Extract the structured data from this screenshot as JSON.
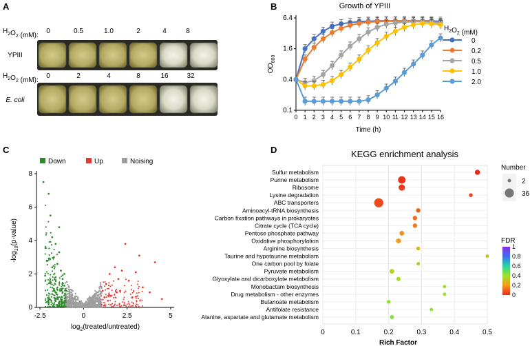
{
  "panels": {
    "a": "A",
    "b": "B",
    "c": "C",
    "d": "D"
  },
  "panel_a": {
    "row1": {
      "header_label": "H2O2 (mM):",
      "organism": "YPIII",
      "concentrations": [
        "0",
        "0.5",
        "1.0",
        "2",
        "4",
        "8"
      ],
      "wells": [
        "turbid",
        "turbid",
        "turbid",
        "turbid",
        "clear",
        "clear"
      ]
    },
    "row2": {
      "header_label": "H2O2 (mM):",
      "organism": "E. coli",
      "concentrations": [
        "0",
        "2",
        "4",
        "8",
        "16",
        "32"
      ],
      "wells": [
        "turbid",
        "turbid",
        "turbid",
        "turbid",
        "clear",
        "clear"
      ]
    }
  },
  "chart_data": [
    {
      "type": "line",
      "panel": "B",
      "title": "Growth of YPIII",
      "xlabel": "Time (h)",
      "ylabel": "OD600",
      "yscale": "log",
      "x": [
        0,
        1,
        2,
        3,
        4,
        5,
        6,
        7,
        8,
        9,
        10,
        11,
        12,
        13,
        14,
        15,
        16
      ],
      "xlim": [
        0,
        16
      ],
      "ylim": [
        0.1,
        6.4
      ],
      "y_ticks": [
        0.1,
        0.4,
        1.6,
        6.4
      ],
      "y_tick_labels": [
        "0.1",
        "0.4",
        "1.6",
        "6.4"
      ],
      "legend_title": "H2O2 (mM)",
      "legend_position": "right",
      "series": [
        {
          "name": "0",
          "color": "#4472c4",
          "values": [
            0.4,
            1.6,
            2.5,
            3.5,
            4.4,
            4.9,
            5.2,
            5.4,
            5.5,
            5.6,
            5.6,
            5.6,
            5.6,
            5.6,
            5.6,
            5.6,
            5.5
          ]
        },
        {
          "name": "0.2",
          "color": "#ed7d31",
          "values": [
            0.4,
            1.0,
            1.7,
            2.5,
            3.3,
            4.0,
            4.6,
            5.0,
            5.3,
            5.4,
            5.5,
            5.5,
            5.5,
            5.5,
            5.5,
            5.4,
            5.2
          ]
        },
        {
          "name": "0.5",
          "color": "#a5a5a5",
          "values": [
            0.4,
            0.35,
            0.38,
            0.5,
            0.75,
            1.2,
            1.8,
            2.5,
            3.4,
            4.2,
            4.8,
            5.1,
            5.3,
            5.4,
            5.4,
            5.3,
            5.0
          ]
        },
        {
          "name": "1.0",
          "color": "#ffc000",
          "values": [
            0.4,
            0.3,
            0.3,
            0.32,
            0.38,
            0.5,
            0.7,
            1.0,
            1.5,
            2.1,
            2.8,
            3.5,
            4.2,
            4.7,
            5.0,
            4.9,
            4.7
          ]
        },
        {
          "name": "2.0",
          "color": "#5b9bd5",
          "values": [
            0.4,
            0.15,
            0.15,
            0.15,
            0.15,
            0.15,
            0.15,
            0.15,
            0.16,
            0.2,
            0.27,
            0.37,
            0.55,
            0.8,
            1.2,
            1.9,
            2.6
          ]
        }
      ]
    },
    {
      "type": "scatter",
      "panel": "C",
      "xlabel": "log2(treated/untreated)",
      "ylabel": "-log10(p-value)",
      "xlim": [
        -2.5,
        5
      ],
      "ylim": [
        0,
        8
      ],
      "x_ticks": [
        -2.5,
        0,
        2.5,
        5
      ],
      "x_tick_labels": [
        "-2.5",
        "0",
        "2.5",
        "5"
      ],
      "y_ticks": [
        0,
        2,
        4,
        6,
        8
      ],
      "y_tick_labels": [
        "0",
        "2",
        "4",
        "6",
        "8"
      ],
      "legend": [
        {
          "name": "Down",
          "color": "#2e8b2e"
        },
        {
          "name": "Up",
          "color": "#e53935"
        },
        {
          "name": "Noising",
          "color": "#9e9e9e"
        }
      ],
      "groups": [
        {
          "name": "Down",
          "color": "#2e8b2e",
          "points": [
            [
              -2.3,
              7.5
            ],
            [
              -2.0,
              6.8
            ],
            [
              -1.9,
              5.5
            ],
            [
              -1.8,
              4.2
            ],
            [
              -1.6,
              3.8
            ],
            [
              -1.7,
              3.0
            ],
            [
              -1.5,
              2.6
            ],
            [
              -1.3,
              2.2
            ],
            [
              -1.2,
              1.7
            ],
            [
              -1.1,
              1.3
            ],
            [
              -1.8,
              2.4
            ],
            [
              -1.4,
              3.3
            ],
            [
              -1.0,
              1.0
            ],
            [
              -1.6,
              1.8
            ],
            [
              -2.1,
              2.8
            ],
            [
              -1.9,
              1.5
            ],
            [
              -1.3,
              1.0
            ],
            [
              -1.7,
              1.1
            ],
            [
              -1.2,
              0.9
            ],
            [
              -1.5,
              0.6
            ],
            [
              -2.2,
              1.9
            ],
            [
              -1.4,
              4.8
            ],
            [
              -1.1,
              2.0
            ],
            [
              -1.8,
              0.8
            ],
            [
              -1.3,
              0.5
            ]
          ]
        },
        {
          "name": "Up",
          "color": "#e53935",
          "points": [
            [
              1.1,
              1.0
            ],
            [
              1.3,
              1.4
            ],
            [
              1.5,
              2.0
            ],
            [
              1.8,
              2.4
            ],
            [
              2.0,
              1.7
            ],
            [
              2.2,
              2.2
            ],
            [
              2.6,
              1.6
            ],
            [
              3.0,
              2.1
            ],
            [
              3.4,
              1.2
            ],
            [
              3.8,
              0.9
            ],
            [
              1.6,
              0.7
            ],
            [
              1.2,
              0.6
            ],
            [
              2.8,
              0.6
            ],
            [
              4.1,
              2.7
            ],
            [
              4.5,
              0.5
            ],
            [
              2.4,
              3.8
            ],
            [
              1.9,
              0.9
            ],
            [
              1.4,
              0.4
            ],
            [
              3.2,
              3.1
            ],
            [
              2.1,
              1.0
            ]
          ]
        },
        {
          "name": "Noising",
          "color": "#9e9e9e",
          "points": [
            [
              -0.8,
              0.4
            ],
            [
              -0.6,
              0.25
            ],
            [
              -0.4,
              0.15
            ],
            [
              -0.2,
              0.05
            ],
            [
              0,
              0.02
            ],
            [
              0.2,
              0.06
            ],
            [
              0.4,
              0.14
            ],
            [
              0.6,
              0.22
            ],
            [
              0.8,
              0.35
            ],
            [
              -0.9,
              0.6
            ],
            [
              0.9,
              0.55
            ],
            [
              -0.7,
              0.9
            ],
            [
              0.7,
              0.8
            ],
            [
              -0.5,
              0.5
            ],
            [
              0.5,
              0.45
            ],
            [
              1.0,
              0.3
            ],
            [
              -1.0,
              0.2
            ],
            [
              0.3,
              0.3
            ],
            [
              -0.3,
              0.25
            ],
            [
              0.1,
              0.1
            ],
            [
              -0.1,
              0.12
            ]
          ]
        }
      ]
    },
    {
      "type": "scatter",
      "panel": "D",
      "title": "KEGG enrichment analysis",
      "xlabel": "Rich Factor",
      "xlim": [
        0,
        0.5
      ],
      "x_ticks": [
        0,
        0.1,
        0.2,
        0.3,
        0.4,
        0.5
      ],
      "x_tick_labels": [
        "0",
        "0.1",
        "0.2",
        "0.3",
        "0.4",
        "0.5"
      ],
      "size_legend_title": "Number",
      "size_legend": [
        {
          "label": "2",
          "value": 2
        },
        {
          "label": "36",
          "value": 36
        }
      ],
      "color_legend_title": "FDR",
      "color_legend_ticks": [
        "1",
        "0.8",
        "0.6",
        "0.4",
        "0.2",
        "0"
      ],
      "categories": [
        "Sulfur metabolism",
        "Purine metabolism",
        "Ribosome",
        "Lysine degradation",
        "ABC transporters",
        "Aminoacyl-tRNA biosynthesis",
        "Carbon fixation pathways in prokaryotes",
        "Citrate cycle (TCA cycle)",
        "Pentose phosphate pathway",
        "Oxidative phosphorylation",
        "Arginine biosynthesis",
        "Taurine and hypotaurine metabolism",
        "One carbon pool by folate",
        "Pyruvate metabolism",
        "Glyoxylate and dicarboxylate metabolism",
        "Monobactam biosynthesis",
        "Drug metabolism - other enzymes",
        "Butanoate metabolism",
        "Antifolate resistance",
        "Alanine, aspartate and glutamate metabolism"
      ],
      "points": [
        {
          "category": "Sulfur metabolism",
          "rich_factor": 0.47,
          "number": 8,
          "fdr": 0.0
        },
        {
          "category": "Purine metabolism",
          "rich_factor": 0.24,
          "number": 22,
          "fdr": 0.02
        },
        {
          "category": "Ribosome",
          "rich_factor": 0.24,
          "number": 14,
          "fdr": 0.03
        },
        {
          "category": "Lysine degradation",
          "rich_factor": 0.45,
          "number": 3,
          "fdr": 0.05
        },
        {
          "category": "ABC transporters",
          "rich_factor": 0.17,
          "number": 36,
          "fdr": 0.06
        },
        {
          "category": "Aminoacyl-tRNA biosynthesis",
          "rich_factor": 0.29,
          "number": 5,
          "fdr": 0.1
        },
        {
          "category": "Carbon fixation pathways in prokaryotes",
          "rich_factor": 0.28,
          "number": 5,
          "fdr": 0.12
        },
        {
          "category": "Citrate cycle (TCA cycle)",
          "rich_factor": 0.28,
          "number": 5,
          "fdr": 0.14
        },
        {
          "category": "Pentose phosphate pathway",
          "rich_factor": 0.24,
          "number": 6,
          "fdr": 0.18
        },
        {
          "category": "Oxidative phosphorylation",
          "rich_factor": 0.23,
          "number": 7,
          "fdr": 0.2
        },
        {
          "category": "Arginine biosynthesis",
          "rich_factor": 0.29,
          "number": 3,
          "fdr": 0.28
        },
        {
          "category": "Taurine and hypotaurine metabolism",
          "rich_factor": 0.5,
          "number": 2,
          "fdr": 0.3
        },
        {
          "category": "One carbon pool by folate",
          "rich_factor": 0.29,
          "number": 2,
          "fdr": 0.32
        },
        {
          "category": "Pyruvate metabolism",
          "rich_factor": 0.21,
          "number": 6,
          "fdr": 0.36
        },
        {
          "category": "Glyoxylate and dicarboxylate metabolism",
          "rich_factor": 0.23,
          "number": 4,
          "fdr": 0.38
        },
        {
          "category": "Monobactam biosynthesis",
          "rich_factor": 0.37,
          "number": 2,
          "fdr": 0.4
        },
        {
          "category": "Drug metabolism - other enzymes",
          "rich_factor": 0.37,
          "number": 2,
          "fdr": 0.4
        },
        {
          "category": "Butanoate metabolism",
          "rich_factor": 0.2,
          "number": 3,
          "fdr": 0.42
        },
        {
          "category": "Antifolate resistance",
          "rich_factor": 0.33,
          "number": 2,
          "fdr": 0.42
        },
        {
          "category": "Alanine, aspartate and glutamate metabolism",
          "rich_factor": 0.21,
          "number": 4,
          "fdr": 0.44
        }
      ]
    }
  ]
}
